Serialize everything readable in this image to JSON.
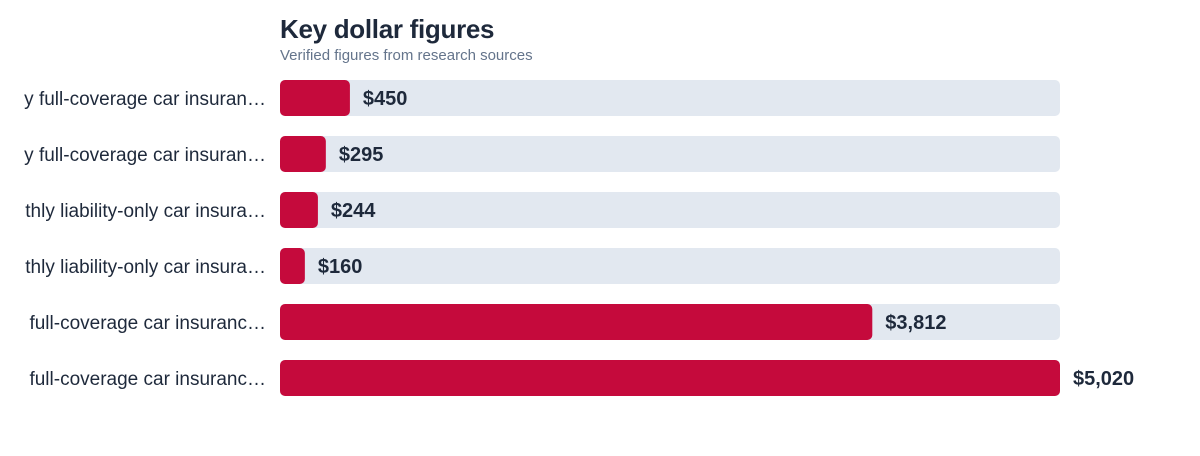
{
  "chart_data": {
    "type": "bar",
    "orientation": "horizontal",
    "title": "Key dollar figures",
    "subtitle": "Verified figures from research sources",
    "categories": [
      "y full-coverage car insuran…",
      "y full-coverage car insuran…",
      "thly liability-only car insura…",
      "thly liability-only car insura…",
      " full-coverage car insuranc…",
      " full-coverage car insuranc…"
    ],
    "values": [
      450,
      295,
      244,
      160,
      3812,
      5020
    ],
    "value_labels": [
      "$450",
      "$295",
      "$244",
      "$160",
      "$3,812",
      "$5,020"
    ],
    "xlim": [
      0,
      5020
    ],
    "bar_color": "#c50a3c",
    "track_color": "#e2e8f0",
    "grid": false
  }
}
